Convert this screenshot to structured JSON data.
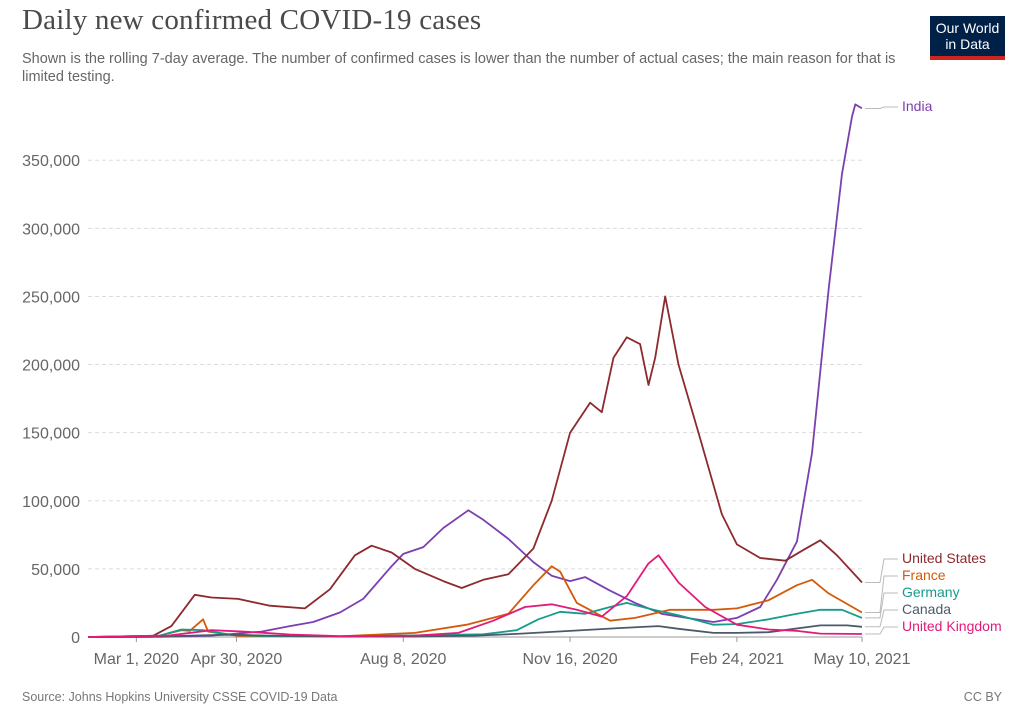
{
  "header": {
    "title": "Daily new confirmed COVID-19 cases",
    "subtitle": "Shown is the rolling 7-day average. The number of confirmed cases is lower than the number of actual cases; the main reason for that is limited testing.",
    "logo_line1": "Our World",
    "logo_line2": "in Data"
  },
  "footer": {
    "source": "Source: Johns Hopkins University CSSE COVID-19 Data",
    "license": "CC BY"
  },
  "chart_data": {
    "type": "line",
    "title": "Daily new confirmed COVID-19 cases",
    "xlabel": "",
    "ylabel": "",
    "x_range": [
      "2020-02-01",
      "2021-05-10"
    ],
    "ylim": [
      0,
      390000
    ],
    "y_ticks": [
      0,
      50000,
      100000,
      150000,
      200000,
      250000,
      300000,
      350000
    ],
    "y_tick_labels": [
      "0",
      "50,000",
      "100,000",
      "150,000",
      "200,000",
      "250,000",
      "300,000",
      "350,000"
    ],
    "x_ticks": [
      "2020-03-01",
      "2020-04-30",
      "2020-08-08",
      "2020-11-16",
      "2021-02-24",
      "2021-05-10"
    ],
    "x_tick_labels": [
      "Mar 1, 2020",
      "Apr 30, 2020",
      "Aug 8, 2020",
      "Nov 16, 2020",
      "Feb 24, 2021",
      "May 10, 2021"
    ],
    "grid": "horizontal dashed",
    "legend": "right (labels at line ends)",
    "series": [
      {
        "name": "India",
        "color": "#7b3fb0",
        "points": [
          [
            "2020-02-01",
            0
          ],
          [
            "2020-03-15",
            50
          ],
          [
            "2020-04-15",
            1000
          ],
          [
            "2020-05-15",
            4000
          ],
          [
            "2020-06-01",
            8000
          ],
          [
            "2020-06-15",
            11000
          ],
          [
            "2020-07-01",
            18000
          ],
          [
            "2020-07-15",
            28000
          ],
          [
            "2020-08-01",
            52000
          ],
          [
            "2020-08-08",
            61000
          ],
          [
            "2020-08-20",
            66000
          ],
          [
            "2020-09-01",
            80000
          ],
          [
            "2020-09-16",
            93000
          ],
          [
            "2020-09-25",
            86000
          ],
          [
            "2020-10-10",
            72000
          ],
          [
            "2020-10-25",
            55000
          ],
          [
            "2020-11-05",
            45000
          ],
          [
            "2020-11-16",
            41000
          ],
          [
            "2020-11-25",
            44000
          ],
          [
            "2020-12-10",
            34000
          ],
          [
            "2020-12-25",
            25000
          ],
          [
            "2021-01-10",
            17000
          ],
          [
            "2021-01-25",
            14000
          ],
          [
            "2021-02-10",
            11000
          ],
          [
            "2021-02-24",
            14000
          ],
          [
            "2021-03-10",
            22000
          ],
          [
            "2021-03-20",
            42000
          ],
          [
            "2021-04-01",
            70000
          ],
          [
            "2021-04-10",
            135000
          ],
          [
            "2021-04-20",
            255000
          ],
          [
            "2021-04-28",
            340000
          ],
          [
            "2021-05-04",
            382000
          ],
          [
            "2021-05-06",
            391000
          ],
          [
            "2021-05-10",
            388000
          ]
        ]
      },
      {
        "name": "United States",
        "color": "#8c2a2f",
        "points": [
          [
            "2020-02-01",
            0
          ],
          [
            "2020-03-10",
            200
          ],
          [
            "2020-03-22",
            8000
          ],
          [
            "2020-04-05",
            31000
          ],
          [
            "2020-04-15",
            29000
          ],
          [
            "2020-05-01",
            28000
          ],
          [
            "2020-05-20",
            23000
          ],
          [
            "2020-06-10",
            21000
          ],
          [
            "2020-06-25",
            35000
          ],
          [
            "2020-07-10",
            60000
          ],
          [
            "2020-07-20",
            67000
          ],
          [
            "2020-08-01",
            62000
          ],
          [
            "2020-08-15",
            50000
          ],
          [
            "2020-09-01",
            41000
          ],
          [
            "2020-09-12",
            36000
          ],
          [
            "2020-09-25",
            42000
          ],
          [
            "2020-10-10",
            46000
          ],
          [
            "2020-10-25",
            65000
          ],
          [
            "2020-11-05",
            100000
          ],
          [
            "2020-11-16",
            150000
          ],
          [
            "2020-11-28",
            172000
          ],
          [
            "2020-12-05",
            165000
          ],
          [
            "2020-12-12",
            205000
          ],
          [
            "2020-12-20",
            220000
          ],
          [
            "2020-12-28",
            215000
          ],
          [
            "2021-01-02",
            185000
          ],
          [
            "2021-01-06",
            205000
          ],
          [
            "2021-01-12",
            250000
          ],
          [
            "2021-01-20",
            200000
          ],
          [
            "2021-02-01",
            150000
          ],
          [
            "2021-02-15",
            90000
          ],
          [
            "2021-02-24",
            68000
          ],
          [
            "2021-03-10",
            58000
          ],
          [
            "2021-03-25",
            56000
          ],
          [
            "2021-04-05",
            64000
          ],
          [
            "2021-04-15",
            71000
          ],
          [
            "2021-04-25",
            60000
          ],
          [
            "2021-05-10",
            40000
          ]
        ]
      },
      {
        "name": "France",
        "color": "#d35a0a",
        "points": [
          [
            "2020-02-01",
            0
          ],
          [
            "2020-03-15",
            1000
          ],
          [
            "2020-03-28",
            5000
          ],
          [
            "2020-04-02",
            4500
          ],
          [
            "2020-04-10",
            13000
          ],
          [
            "2020-04-13",
            4000
          ],
          [
            "2020-05-01",
            800
          ],
          [
            "2020-07-01",
            500
          ],
          [
            "2020-08-15",
            3000
          ],
          [
            "2020-09-15",
            9000
          ],
          [
            "2020-10-10",
            17000
          ],
          [
            "2020-10-25",
            38000
          ],
          [
            "2020-11-05",
            52000
          ],
          [
            "2020-11-10",
            48000
          ],
          [
            "2020-11-20",
            25000
          ],
          [
            "2020-12-10",
            12000
          ],
          [
            "2020-12-25",
            14000
          ],
          [
            "2021-01-15",
            20000
          ],
          [
            "2021-02-10",
            20000
          ],
          [
            "2021-02-24",
            21000
          ],
          [
            "2021-03-15",
            27000
          ],
          [
            "2021-04-01",
            38000
          ],
          [
            "2021-04-10",
            42000
          ],
          [
            "2021-04-20",
            32000
          ],
          [
            "2021-05-10",
            18000
          ]
        ]
      },
      {
        "name": "Germany",
        "color": "#159c8a",
        "points": [
          [
            "2020-02-01",
            0
          ],
          [
            "2020-03-15",
            1000
          ],
          [
            "2020-03-28",
            5500
          ],
          [
            "2020-04-10",
            5000
          ],
          [
            "2020-04-25",
            2000
          ],
          [
            "2020-05-15",
            700
          ],
          [
            "2020-07-01",
            400
          ],
          [
            "2020-08-15",
            1200
          ],
          [
            "2020-09-25",
            2000
          ],
          [
            "2020-10-15",
            5000
          ],
          [
            "2020-10-28",
            13000
          ],
          [
            "2020-11-10",
            18500
          ],
          [
            "2020-11-25",
            17000
          ],
          [
            "2020-12-10",
            22000
          ],
          [
            "2020-12-20",
            25000
          ],
          [
            "2021-01-05",
            20000
          ],
          [
            "2021-01-20",
            16000
          ],
          [
            "2021-02-10",
            9000
          ],
          [
            "2021-02-24",
            9500
          ],
          [
            "2021-03-15",
            13000
          ],
          [
            "2021-04-01",
            17000
          ],
          [
            "2021-04-15",
            20000
          ],
          [
            "2021-04-28",
            20000
          ],
          [
            "2021-05-10",
            14000
          ]
        ]
      },
      {
        "name": "Canada",
        "color": "#4b5a6b",
        "points": [
          [
            "2020-02-01",
            0
          ],
          [
            "2020-03-20",
            500
          ],
          [
            "2020-04-25",
            1700
          ],
          [
            "2020-05-20",
            1000
          ],
          [
            "2020-07-01",
            300
          ],
          [
            "2020-08-15",
            400
          ],
          [
            "2020-09-20",
            1000
          ],
          [
            "2020-10-15",
            2300
          ],
          [
            "2020-11-16",
            4500
          ],
          [
            "2020-12-15",
            6500
          ],
          [
            "2021-01-08",
            8000
          ],
          [
            "2021-01-20",
            6000
          ],
          [
            "2021-02-10",
            3000
          ],
          [
            "2021-02-24",
            3000
          ],
          [
            "2021-03-15",
            3500
          ],
          [
            "2021-04-15",
            8500
          ],
          [
            "2021-05-01",
            8500
          ],
          [
            "2021-05-10",
            7500
          ]
        ]
      },
      {
        "name": "United Kingdom",
        "color": "#e21a7a",
        "points": [
          [
            "2020-02-01",
            0
          ],
          [
            "2020-03-20",
            1000
          ],
          [
            "2020-04-15",
            5000
          ],
          [
            "2020-05-05",
            4000
          ],
          [
            "2020-06-01",
            1800
          ],
          [
            "2020-07-01",
            600
          ],
          [
            "2020-08-15",
            1000
          ],
          [
            "2020-09-10",
            3000
          ],
          [
            "2020-10-01",
            12000
          ],
          [
            "2020-10-20",
            22000
          ],
          [
            "2020-11-05",
            24000
          ],
          [
            "2020-11-20",
            20000
          ],
          [
            "2020-12-05",
            15000
          ],
          [
            "2020-12-20",
            30000
          ],
          [
            "2021-01-02",
            54000
          ],
          [
            "2021-01-08",
            60000
          ],
          [
            "2021-01-20",
            40000
          ],
          [
            "2021-02-05",
            22000
          ],
          [
            "2021-02-24",
            9000
          ],
          [
            "2021-03-15",
            5500
          ],
          [
            "2021-04-01",
            4500
          ],
          [
            "2021-04-15",
            2500
          ],
          [
            "2021-05-10",
            2200
          ]
        ]
      }
    ]
  }
}
